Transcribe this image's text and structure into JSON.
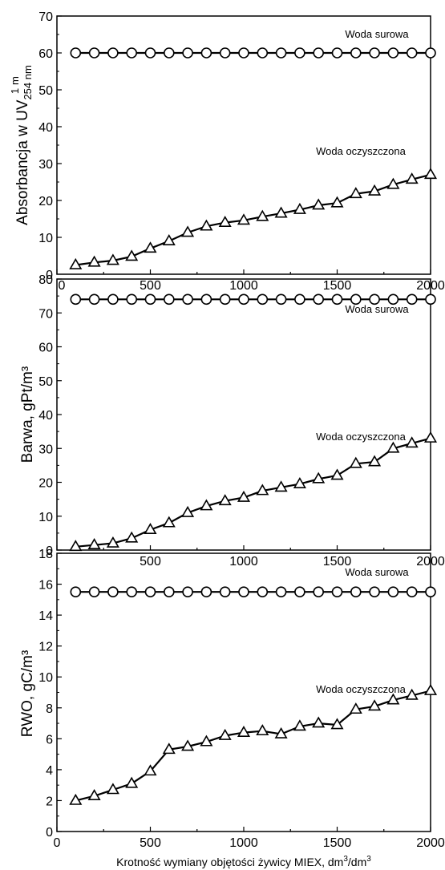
{
  "chart_data": [
    {
      "type": "line",
      "ylabel_main": "Absorbancja w UV",
      "ylabel_sub": "254 nm",
      "ylabel_sup": "1",
      "ylabel_unit": "m",
      "xlim": [
        0,
        2000
      ],
      "ylim": [
        0,
        70
      ],
      "xticks": [
        500,
        1000,
        1500,
        2000
      ],
      "yticks": [
        10,
        20,
        30,
        40,
        50,
        60,
        70
      ],
      "series": [
        {
          "name": "Woda surowa",
          "marker": "circle",
          "x": [
            100,
            200,
            300,
            400,
            500,
            600,
            700,
            800,
            900,
            1000,
            1100,
            1200,
            1300,
            1400,
            1500,
            1600,
            1700,
            1800,
            1900,
            2000
          ],
          "y": [
            60,
            60,
            60,
            60,
            60,
            60,
            60,
            60,
            60,
            60,
            60,
            60,
            60,
            60,
            60,
            60,
            60,
            60,
            60,
            60
          ]
        },
        {
          "name": "Woda oczyszczona",
          "marker": "triangle",
          "x": [
            100,
            200,
            300,
            400,
            500,
            600,
            700,
            800,
            900,
            1000,
            1100,
            1200,
            1300,
            1400,
            1500,
            1600,
            1700,
            1800,
            1900,
            2000
          ],
          "y": [
            2.5,
            3.2,
            3.7,
            4.8,
            7,
            9,
            11.3,
            13,
            14,
            14.6,
            15.6,
            16.5,
            17.5,
            18.7,
            19.3,
            21.8,
            22.5,
            24.3,
            25.7,
            27
          ]
        }
      ]
    },
    {
      "type": "line",
      "ylabel": "Barwa, gPt/m³",
      "xlim": [
        0,
        2000
      ],
      "ylim": [
        0,
        80
      ],
      "xticks": [
        500,
        1000,
        1500,
        2000
      ],
      "yticks": [
        0,
        10,
        20,
        30,
        40,
        50,
        60,
        70,
        80
      ],
      "series": [
        {
          "name": "Woda surowa",
          "marker": "circle",
          "x": [
            100,
            200,
            300,
            400,
            500,
            600,
            700,
            800,
            900,
            1000,
            1100,
            1200,
            1300,
            1400,
            1500,
            1600,
            1700,
            1800,
            1900,
            2000
          ],
          "y": [
            74,
            74,
            74,
            74,
            74,
            74,
            74,
            74,
            74,
            74,
            74,
            74,
            74,
            74,
            74,
            74,
            74,
            74,
            74,
            74
          ]
        },
        {
          "name": "Woda oczyszczona",
          "marker": "triangle",
          "x": [
            100,
            200,
            300,
            400,
            500,
            600,
            700,
            800,
            900,
            1000,
            1100,
            1200,
            1300,
            1400,
            1500,
            1600,
            1700,
            1800,
            1900,
            2000
          ],
          "y": [
            1,
            1.5,
            2,
            3.5,
            6,
            8,
            11,
            13,
            14.5,
            15.5,
            17.5,
            18.5,
            19.5,
            21,
            22,
            25.5,
            26,
            30,
            31.5,
            33
          ]
        }
      ]
    },
    {
      "type": "line",
      "ylabel": "RWO, gC/m³",
      "xlabel_main": "Krotność wymiany objętości żywicy MIEX, dm",
      "xlabel_sup1": "3",
      "xlabel_mid": "/dm",
      "xlabel_sup2": "3",
      "xlim": [
        0,
        2000
      ],
      "ylim": [
        0,
        18
      ],
      "xticks": [
        0,
        500,
        1000,
        1500,
        2000
      ],
      "yticks": [
        0,
        2,
        4,
        6,
        8,
        10,
        12,
        14,
        16,
        18
      ],
      "series": [
        {
          "name": "Woda surowa",
          "marker": "circle",
          "x": [
            100,
            200,
            300,
            400,
            500,
            600,
            700,
            800,
            900,
            1000,
            1100,
            1200,
            1300,
            1400,
            1500,
            1600,
            1700,
            1800,
            1900,
            2000
          ],
          "y": [
            15.5,
            15.5,
            15.5,
            15.5,
            15.5,
            15.5,
            15.5,
            15.5,
            15.5,
            15.5,
            15.5,
            15.5,
            15.5,
            15.5,
            15.5,
            15.5,
            15.5,
            15.5,
            15.5,
            15.5
          ]
        },
        {
          "name": "Woda oczyszczona",
          "marker": "triangle",
          "x": [
            100,
            200,
            300,
            400,
            500,
            600,
            700,
            800,
            900,
            1000,
            1100,
            1200,
            1300,
            1400,
            1500,
            1600,
            1700,
            1800,
            1900,
            2000
          ],
          "y": [
            2,
            2.3,
            2.7,
            3.1,
            3.9,
            5.3,
            5.5,
            5.8,
            6.2,
            6.4,
            6.5,
            6.3,
            6.8,
            7,
            6.9,
            7.9,
            8.1,
            8.5,
            8.8,
            9.1
          ]
        }
      ]
    }
  ]
}
